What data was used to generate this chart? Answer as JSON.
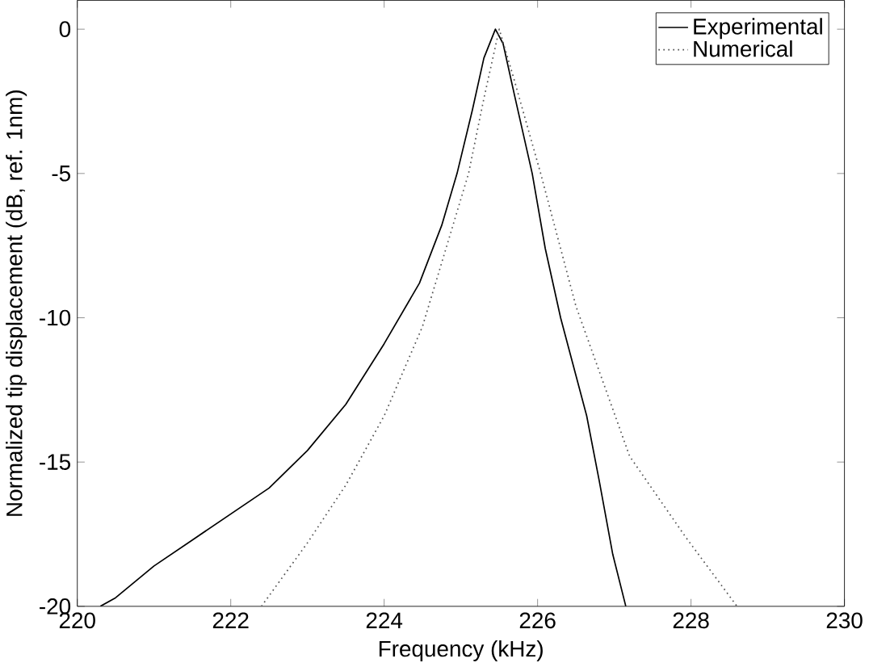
{
  "chart_data": {
    "type": "line",
    "xlabel": "Frequency (kHz)",
    "ylabel": "Normalized tip displacement (dB, ref. 1nm)",
    "xlim": [
      220,
      230
    ],
    "ylim": [
      -20,
      1
    ],
    "xticks": [
      220,
      222,
      224,
      226,
      228,
      230
    ],
    "yticks": [
      -20,
      -15,
      -10,
      -5,
      0
    ],
    "legend": "top right",
    "series": [
      {
        "name": "Experimental",
        "color": "#000000",
        "line_style": "solid",
        "x": [
          220.3,
          220.5,
          221.0,
          221.5,
          222.0,
          222.5,
          223.0,
          223.5,
          224.0,
          224.46,
          224.75,
          224.95,
          225.15,
          225.3,
          225.45,
          225.55,
          225.7,
          225.93,
          226.1,
          226.3,
          226.5,
          226.64,
          226.8,
          226.98,
          227.15
        ],
        "values": [
          -20,
          -19.7,
          -18.6,
          -17.7,
          -16.8,
          -15.9,
          -14.6,
          -13.0,
          -10.9,
          -8.8,
          -6.8,
          -5.0,
          -2.8,
          -1.0,
          0,
          -0.5,
          -2.3,
          -5.0,
          -7.6,
          -10.0,
          -12.0,
          -13.4,
          -15.6,
          -18.2,
          -20
        ]
      },
      {
        "name": "Numerical",
        "color": "#555555",
        "line_style": "dotted",
        "x": [
          222.4,
          223.0,
          223.5,
          224.0,
          224.5,
          225.1,
          225.3,
          225.5,
          225.7,
          226.04,
          226.5,
          227.2,
          227.93,
          228.6
        ],
        "values": [
          -20,
          -17.8,
          -15.8,
          -13.4,
          -10.3,
          -5.0,
          -2.4,
          0,
          -1.8,
          -5.0,
          -9.6,
          -14.8,
          -17.6,
          -20
        ]
      }
    ]
  }
}
